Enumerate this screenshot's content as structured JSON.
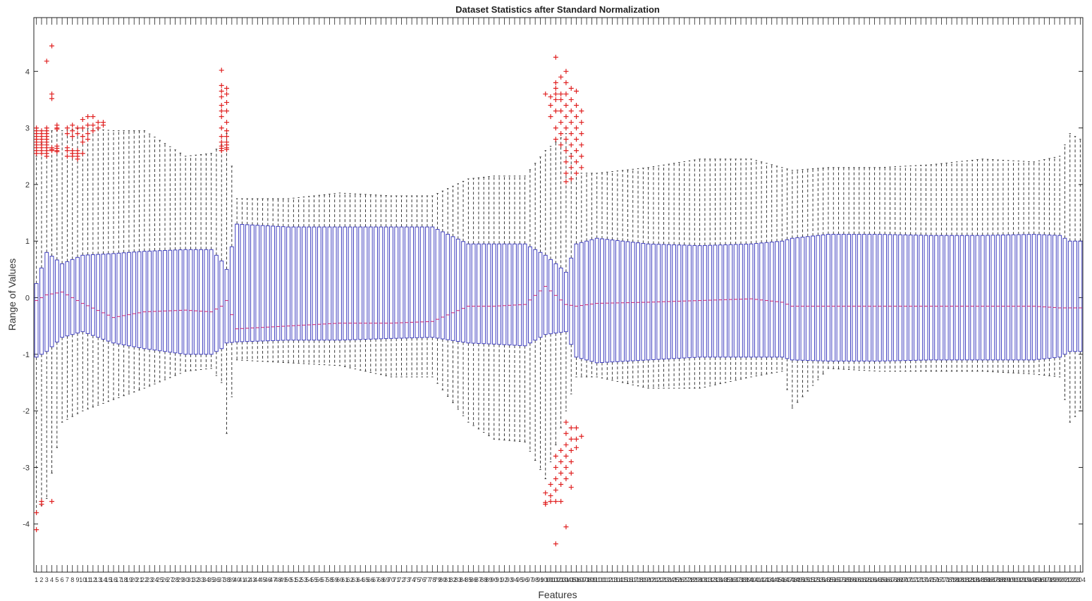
{
  "chart_data": {
    "type": "boxplot",
    "title": "Dataset Statistics after Standard Normalization",
    "xlabel": "Features",
    "ylabel": "Range of Values",
    "ylim": [
      -4.85,
      4.95
    ],
    "yticks": [
      -4,
      -3,
      -2,
      -1,
      0,
      1,
      2,
      3,
      4
    ],
    "xlim": [
      0.5,
      204.5
    ],
    "grid": false,
    "box_color": "#3f3fbf",
    "whisker_color": "#222222",
    "median_color": "#d0307a",
    "outlier_color": "#e02020",
    "feature_count": 204,
    "summary_points": {
      "x": [
        1,
        3,
        6,
        10,
        16,
        22,
        30,
        35,
        37,
        38,
        40,
        50,
        60,
        70,
        78,
        85,
        90,
        96,
        100,
        104,
        106,
        110,
        120,
        130,
        140,
        146,
        148,
        155,
        165,
        175,
        185,
        195,
        200,
        202,
        204
      ],
      "q1": [
        -1.05,
        -0.95,
        -0.7,
        -0.6,
        -0.8,
        -0.9,
        -1.0,
        -1.0,
        -0.9,
        -0.8,
        -0.78,
        -0.75,
        -0.75,
        -0.72,
        -0.7,
        -0.8,
        -0.82,
        -0.85,
        -0.65,
        -0.6,
        -1.05,
        -1.15,
        -1.1,
        -1.05,
        -1.05,
        -1.05,
        -1.1,
        -1.12,
        -1.12,
        -1.1,
        -1.1,
        -1.1,
        -1.05,
        -0.95,
        -0.95
      ],
      "median": [
        -0.05,
        0.05,
        0.1,
        -0.1,
        -0.35,
        -0.25,
        -0.22,
        -0.25,
        -0.15,
        -0.05,
        -0.55,
        -0.5,
        -0.45,
        -0.45,
        -0.42,
        -0.15,
        -0.15,
        -0.12,
        0.2,
        -0.12,
        -0.15,
        -0.1,
        -0.08,
        -0.05,
        -0.02,
        -0.08,
        -0.15,
        -0.15,
        -0.15,
        -0.15,
        -0.15,
        -0.15,
        -0.18,
        -0.18,
        -0.18
      ],
      "q3": [
        0.25,
        0.8,
        0.6,
        0.75,
        0.78,
        0.82,
        0.85,
        0.85,
        0.65,
        0.5,
        1.3,
        1.25,
        1.25,
        1.25,
        1.25,
        0.95,
        0.95,
        0.95,
        0.75,
        0.45,
        0.95,
        1.05,
        0.95,
        0.92,
        0.95,
        1.0,
        1.05,
        1.12,
        1.12,
        1.1,
        1.1,
        1.12,
        1.1,
        1.0,
        1.0
      ],
      "lower_whisker": [
        -3.8,
        -3.55,
        -2.2,
        -2.0,
        -1.8,
        -1.6,
        -1.3,
        -1.25,
        -1.5,
        -2.4,
        -1.1,
        -1.15,
        -1.2,
        -1.4,
        -1.4,
        -2.2,
        -2.5,
        -2.55,
        -3.2,
        -2.0,
        -1.4,
        -1.4,
        -1.6,
        -1.6,
        -1.4,
        -1.3,
        -1.95,
        -1.25,
        -1.3,
        -1.3,
        -1.3,
        -1.35,
        -1.4,
        -2.2,
        -2.0
      ],
      "upper_whisker": [
        2.5,
        2.95,
        2.95,
        3.0,
        2.95,
        2.95,
        2.5,
        2.55,
        2.7,
        2.9,
        1.75,
        1.75,
        1.85,
        1.8,
        1.8,
        2.1,
        2.15,
        2.15,
        2.6,
        2.9,
        2.2,
        2.2,
        2.3,
        2.45,
        2.45,
        2.3,
        2.25,
        2.3,
        2.3,
        2.35,
        2.45,
        2.4,
        2.5,
        2.9,
        2.8
      ]
    },
    "outliers": [
      {
        "x": 1,
        "y": [
          3.0,
          2.95,
          2.9,
          2.85,
          2.8,
          2.75,
          2.7,
          2.65,
          2.6,
          2.55,
          -3.8,
          -4.1
        ]
      },
      {
        "x": 2,
        "y": [
          2.95,
          2.9,
          2.85,
          2.8,
          2.75,
          2.7,
          2.65,
          2.6,
          2.55,
          -3.6,
          -3.65
        ]
      },
      {
        "x": 3,
        "y": [
          4.18,
          3.0,
          2.95,
          2.9,
          2.85,
          2.8,
          2.75,
          2.7,
          2.65,
          2.6,
          2.55,
          2.5
        ]
      },
      {
        "x": 4,
        "y": [
          4.45,
          3.6,
          3.52,
          2.65,
          2.62,
          2.6,
          -3.6
        ]
      },
      {
        "x": 5,
        "y": [
          3.05,
          3.0,
          2.98,
          2.68,
          2.64,
          2.6,
          2.58
        ]
      },
      {
        "x": 7,
        "y": [
          3.0,
          2.9,
          2.65,
          2.6,
          2.5
        ]
      },
      {
        "x": 8,
        "y": [
          3.05,
          2.95,
          2.85,
          2.6,
          2.55,
          2.5
        ]
      },
      {
        "x": 9,
        "y": [
          3.0,
          2.9,
          2.6,
          2.55,
          2.5,
          2.45
        ]
      },
      {
        "x": 10,
        "y": [
          3.15,
          3.0,
          2.85,
          2.75,
          2.55
        ]
      },
      {
        "x": 11,
        "y": [
          3.2,
          3.05,
          2.9,
          2.8
        ]
      },
      {
        "x": 12,
        "y": [
          3.2,
          3.05,
          2.95
        ]
      },
      {
        "x": 13,
        "y": [
          3.1,
          3.0
        ]
      },
      {
        "x": 14,
        "y": [
          3.1,
          3.05
        ]
      },
      {
        "x": 37,
        "y": [
          4.02,
          3.75,
          3.65,
          3.55,
          3.4,
          3.3,
          3.2,
          3.0,
          2.85,
          2.75,
          2.68,
          2.64,
          2.6
        ]
      },
      {
        "x": 38,
        "y": [
          3.7,
          3.6,
          3.45,
          3.3,
          3.1,
          2.95,
          2.85,
          2.75,
          2.7,
          2.65,
          2.62
        ]
      },
      {
        "x": 100,
        "y": [
          3.6,
          -3.45,
          -3.62,
          -3.65
        ]
      },
      {
        "x": 101,
        "y": [
          3.55,
          3.4,
          3.2,
          -3.3,
          -3.5,
          -3.6
        ]
      },
      {
        "x": 102,
        "y": [
          4.25,
          3.8,
          3.7,
          3.6,
          3.5,
          3.3,
          3.0,
          2.8,
          -2.8,
          -3.0,
          -3.2,
          -3.4,
          -4.35,
          -3.6
        ]
      },
      {
        "x": 103,
        "y": [
          3.9,
          3.6,
          3.5,
          3.3,
          3.1,
          2.9,
          2.7,
          -2.7,
          -2.9,
          -3.1,
          -3.3,
          -3.6
        ]
      },
      {
        "x": 104,
        "y": [
          4.0,
          3.8,
          3.6,
          3.4,
          3.2,
          3.0,
          2.8,
          2.6,
          2.4,
          2.2,
          2.05,
          -2.2,
          -2.4,
          -2.6,
          -2.8,
          -3.0,
          -3.2,
          -4.05
        ]
      },
      {
        "x": 105,
        "y": [
          3.7,
          3.5,
          3.3,
          3.1,
          2.9,
          2.7,
          2.5,
          2.3,
          2.1,
          -2.3,
          -2.5,
          -2.7,
          -2.9,
          -3.1,
          -3.35
        ]
      },
      {
        "x": 106,
        "y": [
          3.65,
          3.4,
          3.2,
          3.0,
          2.8,
          2.6,
          2.4,
          2.2,
          -2.3,
          -2.5,
          -2.65
        ]
      },
      {
        "x": 107,
        "y": [
          3.3,
          3.1,
          2.9,
          2.7,
          2.5,
          2.3,
          -2.45
        ]
      }
    ]
  }
}
